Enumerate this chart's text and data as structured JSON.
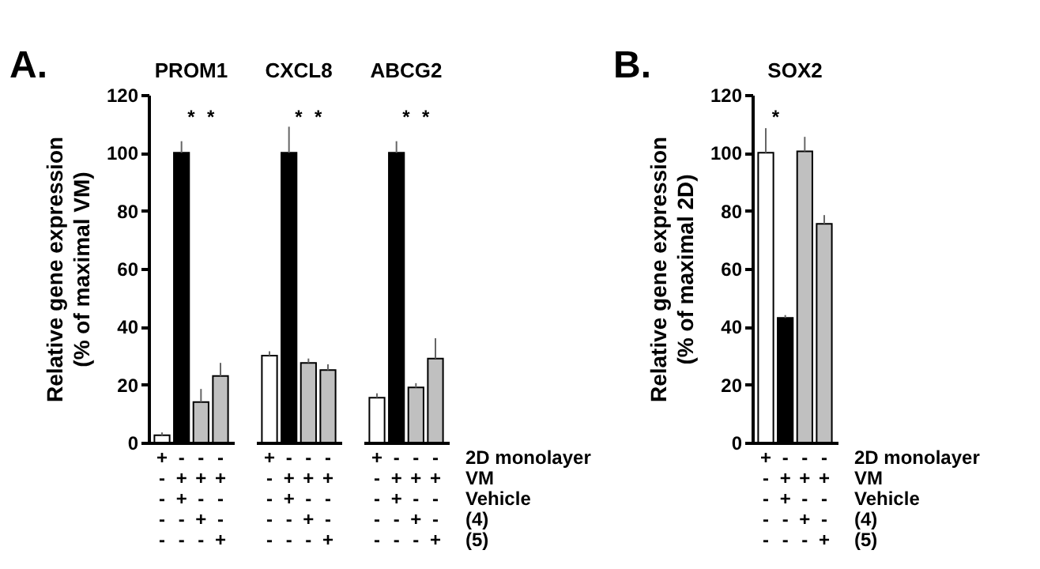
{
  "chart_data": [
    {
      "type": "bar",
      "title": "PROM1",
      "ylabel": "Relative gene expression\n(% of maximal VM)",
      "categories": [
        "+\n-\n-\n-\n-",
        "-\n+\n+\n-\n-",
        "-\n+\n-\n+\n-",
        "-\n+\n-\n-\n+"
      ],
      "values": [
        2.5,
        100,
        14,
        23
      ],
      "colors": [
        "#ffffff",
        "#000000",
        "#c0c0c0",
        "#c0c0c0"
      ],
      "errors": [
        [
          2.5,
          3.5
        ],
        [
          100,
          104
        ],
        [
          14,
          18.5
        ],
        [
          23,
          27.5
        ]
      ],
      "ylim": [
        0,
        120
      ],
      "yticks": [
        0,
        20,
        40,
        60,
        80,
        100,
        120
      ],
      "annotations": [
        "A.",
        "*",
        "*"
      ]
    },
    {
      "type": "bar",
      "title": "CXCL8",
      "categories": [
        "+\n-\n-\n-\n-",
        "-\n+\n+\n-\n-",
        "-\n+\n-\n+\n-",
        "-\n+\n-\n-\n+"
      ],
      "values": [
        30,
        100,
        27.5,
        25
      ],
      "colors": [
        "#ffffff",
        "#000000",
        "#c0c0c0",
        "#c0c0c0"
      ],
      "errors": [
        [
          30,
          31.5
        ],
        [
          100,
          109
        ],
        [
          27.5,
          29
        ],
        [
          25,
          27
        ]
      ],
      "ylim": [
        0,
        120
      ],
      "tick_labels": "x",
      "annotations": [
        "*",
        "*"
      ]
    },
    {
      "type": "bar",
      "title": "ABCG2",
      "xlabel": "2D monolayer\nVM\nVehicle\n(4)\n(5)",
      "categories": [
        "+\n-\n-\n-\n-",
        "-\n+\n+\n-\n-",
        "-\n+\n-\n+\n-",
        "-\n+\n-\n-\n+"
      ],
      "values": [
        15.5,
        100,
        19,
        29
      ],
      "colors": [
        "#ffffff",
        "#000000",
        "#c0c0c0",
        "#c0c0c0"
      ],
      "errors": [
        [
          15.5,
          17
        ],
        [
          100,
          104
        ],
        [
          19,
          20.5
        ],
        [
          29,
          36
        ]
      ],
      "ylim": [
        0,
        120
      ],
      "tick_labels": "x",
      "annotations": [
        "*",
        "*"
      ]
    },
    {
      "type": "bar",
      "title": "SOX2",
      "ylabel": "Relative gene expression\n(% of maximal 2D)",
      "xlabel": "2D monolayer\nVM\nVehicle\n(4)\n(5)",
      "categories": [
        "+\n-\n-\n-\n-",
        "-\n+\n+\n-\n-",
        "-\n+\n-\n+\n-",
        "-\n+\n-\n-\n+"
      ],
      "values": [
        100,
        43,
        100.5,
        75.5
      ],
      "colors": [
        "#ffffff",
        "#000000",
        "#c0c0c0",
        "#c0c0c0"
      ],
      "errors": [
        [
          100,
          108.5
        ],
        [
          43,
          44
        ],
        [
          100.5,
          105.5
        ],
        [
          75.5,
          78.5
        ]
      ],
      "ylim": [
        0,
        120
      ],
      "yticks": [
        0,
        20,
        40,
        60,
        80,
        100,
        120
      ],
      "annotations": [
        "B.",
        "*"
      ]
    }
  ]
}
